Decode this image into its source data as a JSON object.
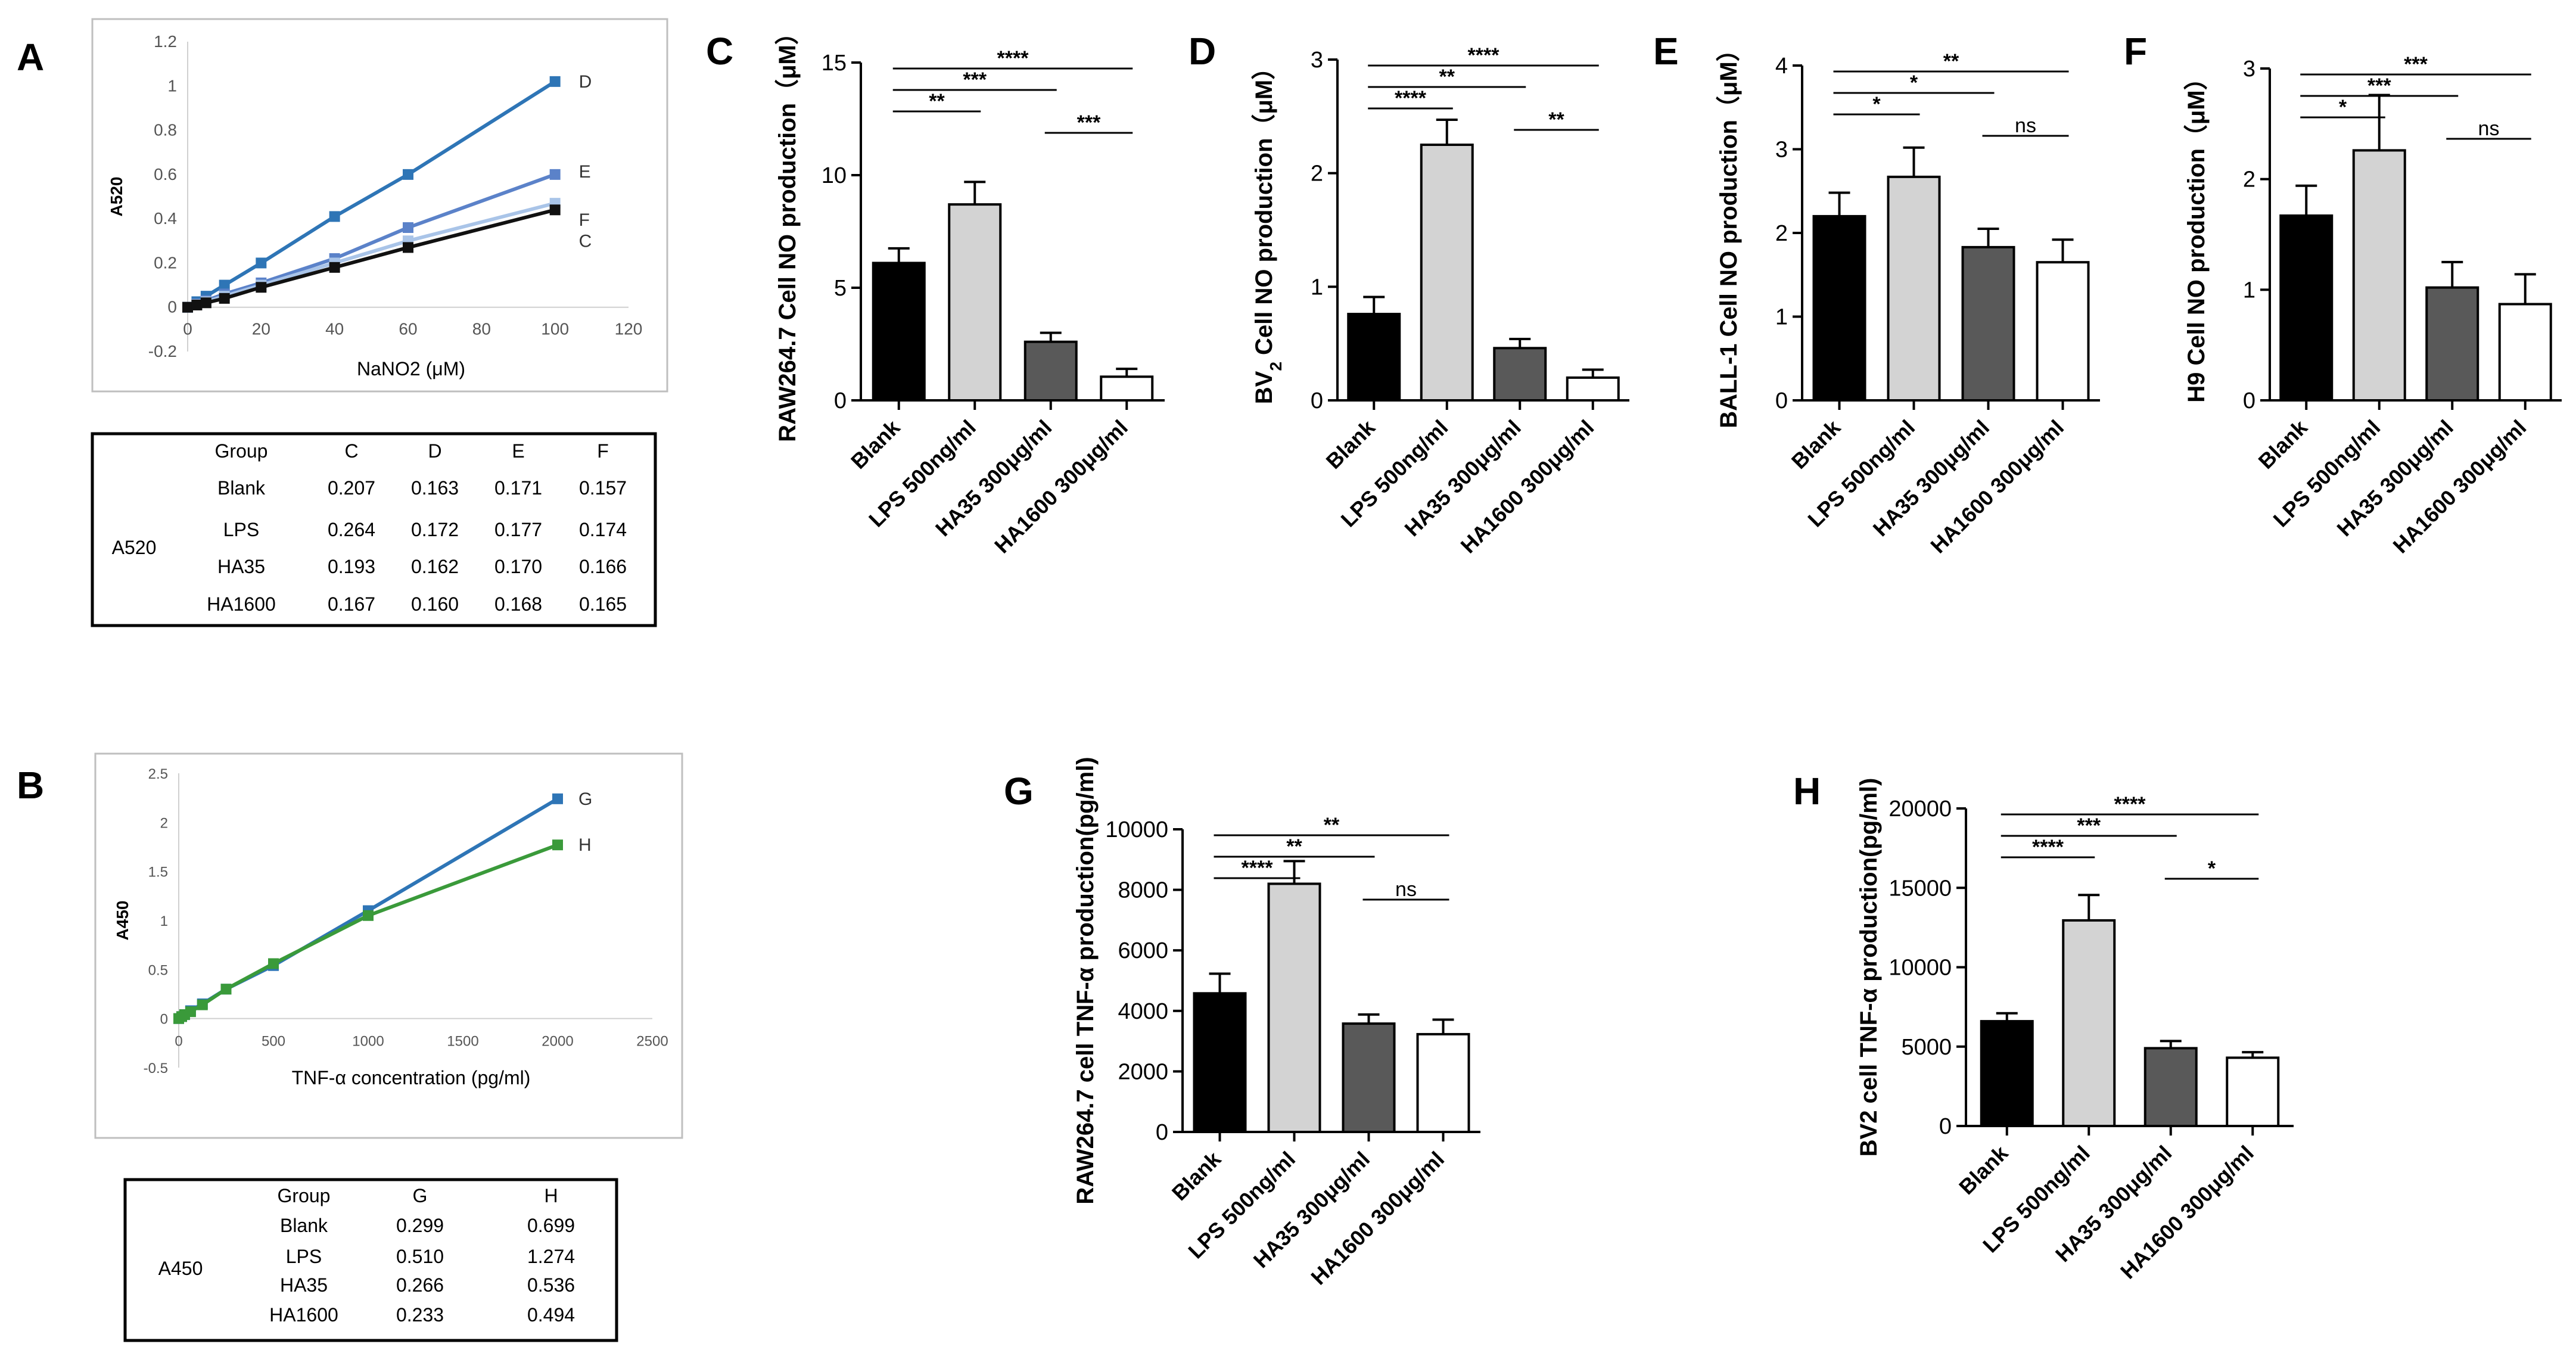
{
  "chart_data": [
    {
      "panel": "A",
      "type": "line",
      "title": "",
      "xlabel": "NaNO2 (μM)",
      "ylabel": "A520",
      "xlim": [
        0,
        120
      ],
      "ylim": [
        -0.2,
        1.2
      ],
      "xticks": [
        "0",
        "20",
        "40",
        "60",
        "80",
        "100",
        "120"
      ],
      "yticks": [
        "-0.2",
        "0",
        "0.2",
        "0.4",
        "0.6",
        "0.8",
        "1",
        "1.2"
      ],
      "series": [
        {
          "name": "D",
          "color": "#2E75B6",
          "x": [
            0,
            2.5,
            5,
            10,
            20,
            40,
            60,
            100
          ],
          "y": [
            0.0,
            0.025,
            0.05,
            0.1,
            0.2,
            0.41,
            0.6,
            1.02
          ]
        },
        {
          "name": "E",
          "color": "#5B82C9",
          "x": [
            0,
            2.5,
            5,
            10,
            20,
            40,
            60,
            100
          ],
          "y": [
            0.0,
            0.015,
            0.03,
            0.06,
            0.11,
            0.22,
            0.36,
            0.6
          ]
        },
        {
          "name": "F",
          "color": "#A9C4E8",
          "x": [
            0,
            2.5,
            5,
            10,
            20,
            40,
            60,
            100
          ],
          "y": [
            0.0,
            0.012,
            0.025,
            0.05,
            0.1,
            0.2,
            0.3,
            0.47
          ]
        },
        {
          "name": "C",
          "color": "#111111",
          "x": [
            0,
            2.5,
            5,
            10,
            20,
            40,
            60,
            100
          ],
          "y": [
            0.0,
            0.01,
            0.02,
            0.04,
            0.09,
            0.18,
            0.27,
            0.44
          ]
        }
      ]
    },
    {
      "panel": "B",
      "type": "line",
      "title": "",
      "xlabel": "TNF-α concentration (pg/ml)",
      "ylabel": "A450",
      "xlim": [
        0,
        2500
      ],
      "ylim": [
        -0.5,
        2.5
      ],
      "xticks": [
        "0",
        "500",
        "1000",
        "1500",
        "2000",
        "2500"
      ],
      "yticks": [
        "-0.5",
        "0",
        "0.5",
        "1",
        "1.5",
        "2",
        "2.5"
      ],
      "series": [
        {
          "name": "G",
          "color": "#2E75B6",
          "x": [
            0,
            15.6,
            31.2,
            62.5,
            125,
            250,
            500,
            1000,
            2000
          ],
          "y": [
            0.0,
            0.02,
            0.04,
            0.08,
            0.15,
            0.3,
            0.54,
            1.1,
            2.24
          ]
        },
        {
          "name": "H",
          "color": "#3A9A3A",
          "x": [
            0,
            15.6,
            31.2,
            62.5,
            125,
            250,
            500,
            1000,
            2000
          ],
          "y": [
            0.0,
            0.02,
            0.04,
            0.07,
            0.14,
            0.3,
            0.56,
            1.05,
            1.77
          ]
        }
      ]
    },
    {
      "panel": "C",
      "type": "bar",
      "ylabel_main": "RAW264.7 Cell NO production（μM）",
      "ylabel_sub": "",
      "ylabel_rest": "",
      "ylim": [
        0,
        15
      ],
      "yticks": [
        "0",
        "5",
        "10",
        "15"
      ],
      "categories": [
        "Blank",
        "LPS 500ng/ml",
        "HA35 300μg/ml",
        "HA1600 300μg/ml"
      ],
      "values": [
        6.1,
        8.7,
        2.6,
        1.05
      ],
      "errors": [
        0.65,
        1.0,
        0.4,
        0.35
      ],
      "significance": [
        {
          "from": 0,
          "to": 1,
          "label": "**"
        },
        {
          "from": 0,
          "to": 2,
          "label": "***"
        },
        {
          "from": 0,
          "to": 3,
          "label": "****"
        },
        {
          "from": 2,
          "to": 3,
          "label": "***"
        }
      ]
    },
    {
      "panel": "D",
      "type": "bar",
      "ylabel_main": "BV",
      "ylabel_sub": "2",
      "ylabel_rest": " Cell NO production（μM）",
      "ylim": [
        0,
        3
      ],
      "yticks": [
        "0",
        "1",
        "2",
        "3"
      ],
      "categories": [
        "Blank",
        "LPS 500ng/ml",
        "HA35 300μg/ml",
        "HA1600 300μg/ml"
      ],
      "values": [
        0.76,
        2.25,
        0.46,
        0.2
      ],
      "errors": [
        0.15,
        0.22,
        0.08,
        0.07
      ],
      "significance": [
        {
          "from": 0,
          "to": 1,
          "label": "****"
        },
        {
          "from": 0,
          "to": 2,
          "label": "**"
        },
        {
          "from": 0,
          "to": 3,
          "label": "****"
        },
        {
          "from": 2,
          "to": 3,
          "label": "**"
        }
      ]
    },
    {
      "panel": "E",
      "type": "bar",
      "ylabel_main": "BALL-1  Cell NO production（μM）",
      "ylabel_sub": "",
      "ylabel_rest": "",
      "ylim": [
        0,
        4
      ],
      "yticks": [
        "0",
        "1",
        "2",
        "3",
        "4"
      ],
      "categories": [
        "Blank",
        "LPS 500ng/ml",
        "HA35 300μg/ml",
        "HA1600 300μg/ml"
      ],
      "values": [
        2.2,
        2.67,
        1.83,
        1.65
      ],
      "errors": [
        0.28,
        0.35,
        0.22,
        0.27
      ],
      "significance": [
        {
          "from": 0,
          "to": 1,
          "label": "*"
        },
        {
          "from": 0,
          "to": 2,
          "label": "*"
        },
        {
          "from": 0,
          "to": 3,
          "label": "**"
        },
        {
          "from": 2,
          "to": 3,
          "label": "ns"
        }
      ]
    },
    {
      "panel": "F",
      "type": "bar",
      "ylabel_main": "H9 Cell NO production（μM）",
      "ylabel_sub": "",
      "ylabel_rest": "",
      "ylim": [
        0,
        3
      ],
      "yticks": [
        "0",
        "1",
        "2",
        "3"
      ],
      "categories": [
        "Blank",
        "LPS 500ng/ml",
        "HA35 300μg/ml",
        "HA1600 300μg/ml"
      ],
      "values": [
        1.67,
        2.26,
        1.02,
        0.87
      ],
      "errors": [
        0.27,
        0.5,
        0.23,
        0.27
      ],
      "significance": [
        {
          "from": 0,
          "to": 1,
          "label": "*"
        },
        {
          "from": 0,
          "to": 2,
          "label": "***"
        },
        {
          "from": 0,
          "to": 3,
          "label": "***"
        },
        {
          "from": 2,
          "to": 3,
          "label": "ns"
        }
      ]
    },
    {
      "panel": "G",
      "type": "bar",
      "ylabel_main": "RAW264.7 cell TNF-α production(pg/ml)",
      "ylabel_sub": "",
      "ylabel_rest": "",
      "ylim": [
        0,
        10000
      ],
      "yticks": [
        "0",
        "2000",
        "4000",
        "6000",
        "8000",
        "10000"
      ],
      "categories": [
        "Blank",
        "LPS 500ng/ml",
        "HA35 300μg/ml",
        "HA1600 300μg/ml"
      ],
      "values": [
        4580,
        8200,
        3580,
        3230
      ],
      "errors": [
        650,
        750,
        300,
        480
      ],
      "significance": [
        {
          "from": 0,
          "to": 1,
          "label": "****"
        },
        {
          "from": 0,
          "to": 2,
          "label": "**"
        },
        {
          "from": 0,
          "to": 3,
          "label": "**"
        },
        {
          "from": 2,
          "to": 3,
          "label": "ns"
        }
      ]
    },
    {
      "panel": "H",
      "type": "bar",
      "ylabel_main": "BV2 cell TNF-α production(pg/ml)",
      "ylabel_sub": "",
      "ylabel_rest": "",
      "ylim": [
        0,
        20000
      ],
      "yticks": [
        "0",
        "5000",
        "10000",
        "15000",
        "20000"
      ],
      "categories": [
        "Blank",
        "LPS 500ng/ml",
        "HA35 300μg/ml",
        "HA1600 300μg/ml"
      ],
      "values": [
        6600,
        12950,
        4900,
        4300
      ],
      "errors": [
        500,
        1600,
        450,
        350
      ],
      "significance": [
        {
          "from": 0,
          "to": 1,
          "label": "****"
        },
        {
          "from": 0,
          "to": 2,
          "label": "***"
        },
        {
          "from": 0,
          "to": 3,
          "label": "****"
        },
        {
          "from": 2,
          "to": 3,
          "label": "*"
        }
      ]
    }
  ],
  "tables": [
    {
      "panel": "A",
      "row_header": "A520",
      "columns": [
        "Group",
        "C",
        "D",
        "E",
        "F"
      ],
      "rows": [
        [
          "Blank",
          "0.207",
          "0.163",
          "0.171",
          "0.157"
        ],
        [
          "LPS",
          "0.264",
          "0.172",
          "0.177",
          "0.174"
        ],
        [
          "HA35",
          "0.193",
          "0.162",
          "0.170",
          "0.166"
        ],
        [
          "HA1600",
          "0.167",
          "0.160",
          "0.168",
          "0.165"
        ]
      ]
    },
    {
      "panel": "B",
      "row_header": "A450",
      "columns": [
        "Group",
        "G",
        "H"
      ],
      "rows": [
        [
          "Blank",
          "0.299",
          "0.699"
        ],
        [
          "LPS",
          "0.510",
          "1.274"
        ],
        [
          "HA35",
          "0.266",
          "0.536"
        ],
        [
          "HA1600",
          "0.233",
          "0.494"
        ]
      ]
    }
  ],
  "colors": {
    "bars": [
      "#000000",
      "#d3d3d3",
      "#595959",
      "#ffffff"
    ],
    "ink": "#000000",
    "frame": "#bfbfbf"
  }
}
